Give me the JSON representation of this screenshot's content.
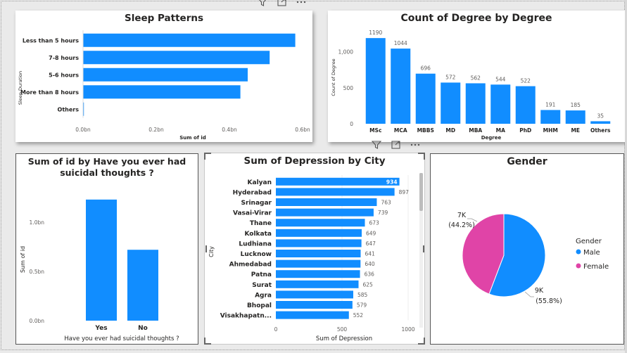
{
  "colors": {
    "accent": "#118dff",
    "pink": "#e044a7",
    "text": "#252423",
    "axis": "#605e5c"
  },
  "sleep": {
    "title": "Sleep Patterns",
    "ylabel": "Sleep Duration",
    "xlabel": "Sum of id",
    "xticks": [
      "0.0bn",
      "0.2bn",
      "0.4bn",
      "0.6bn"
    ]
  },
  "degree": {
    "title": "Count of Degree by Degree",
    "ylabel": "Count of Degree",
    "xlabel": "Degree",
    "yticks": [
      "0",
      "500",
      "1,000"
    ]
  },
  "suicidal": {
    "title": "Sum of id by Have you ever had suicidal thoughts ?",
    "ylabel": "Sum of id",
    "xlabel": "Have you ever had suicidal thoughts ?",
    "yticks": [
      "0.0bn",
      "0.5bn",
      "1.0bn"
    ]
  },
  "depression": {
    "title": "Sum of Depression by City",
    "ylabel": "City",
    "xlabel": "Sum of Depression",
    "xticks": [
      "0",
      "500",
      "1000"
    ]
  },
  "gender": {
    "title": "Gender",
    "legend_title": "Gender",
    "legend": [
      "Male",
      "Female"
    ],
    "label_female_value": "7K",
    "label_female_pct": "(44.2%)",
    "label_male_value": "9K",
    "label_male_pct": "(55.8%)"
  },
  "chart_data": [
    {
      "type": "bar",
      "orientation": "horizontal",
      "title": "Sleep Patterns",
      "xlabel": "Sum of id",
      "ylabel": "Sleep Duration",
      "xlim": [
        0,
        0.6
      ],
      "x_unit": "bn",
      "categories": [
        "Less than 5 hours",
        "7-8 hours",
        "5-6 hours",
        "More than 8 hours",
        "Others"
      ],
      "values": [
        0.58,
        0.51,
        0.45,
        0.43,
        0.001
      ]
    },
    {
      "type": "bar",
      "title": "Count of Degree by Degree",
      "xlabel": "Degree",
      "ylabel": "Count of Degree",
      "ylim": [
        0,
        1250
      ],
      "categories": [
        "MSc",
        "MCA",
        "MBBS",
        "MD",
        "MBA",
        "MA",
        "PhD",
        "MHM",
        "ME",
        "Others"
      ],
      "values": [
        1190,
        1044,
        696,
        572,
        562,
        544,
        522,
        191,
        185,
        35
      ]
    },
    {
      "type": "bar",
      "title": "Sum of id by Have you ever had suicidal thoughts ?",
      "xlabel": "Have you ever had suicidal thoughts ?",
      "ylabel": "Sum of id",
      "ylim": [
        0,
        1.25
      ],
      "y_unit": "bn",
      "categories": [
        "Yes",
        "No"
      ],
      "values": [
        1.23,
        0.72
      ]
    },
    {
      "type": "bar",
      "orientation": "horizontal",
      "title": "Sum of Depression by City",
      "xlabel": "Sum of Depression",
      "ylabel": "City",
      "xlim": [
        0,
        1000
      ],
      "categories": [
        "Kalyan",
        "Hyderabad",
        "Srinagar",
        "Vasai-Virar",
        "Thane",
        "Kolkata",
        "Ludhiana",
        "Lucknow",
        "Ahmedabad",
        "Patna",
        "Surat",
        "Agra",
        "Bhopal",
        "Visakhapatn..."
      ],
      "values": [
        934,
        897,
        763,
        739,
        673,
        649,
        647,
        641,
        640,
        636,
        625,
        585,
        579,
        552
      ]
    },
    {
      "type": "pie",
      "title": "Gender",
      "categories": [
        "Male",
        "Female"
      ],
      "values": [
        55.8,
        44.2
      ],
      "labels": [
        "9K (55.8%)",
        "7K (44.2%)"
      ]
    }
  ]
}
